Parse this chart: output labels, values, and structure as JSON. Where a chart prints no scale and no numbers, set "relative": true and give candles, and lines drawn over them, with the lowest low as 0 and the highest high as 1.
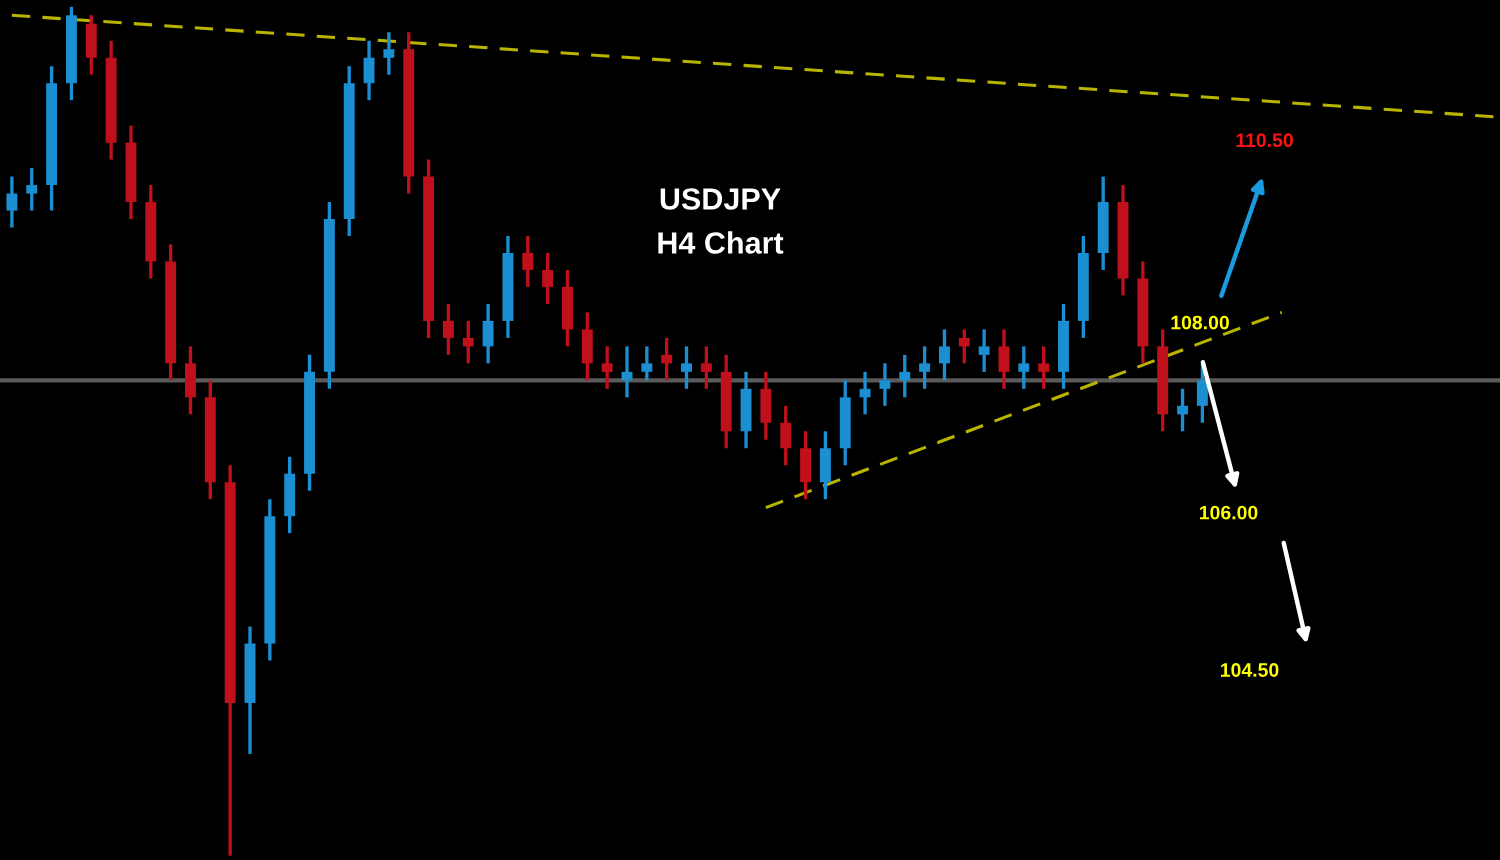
{
  "chart_data": {
    "type": "candlestick",
    "title": "USDJPY\nH4 Chart",
    "relative": true,
    "categories": [
      null,
      null,
      null,
      null,
      null,
      null,
      null,
      null,
      null,
      null,
      null,
      null,
      null,
      null,
      null,
      null,
      null,
      null,
      null,
      null,
      null,
      null,
      null,
      null,
      null,
      null,
      null,
      null,
      null,
      null,
      null,
      null,
      null,
      null,
      null,
      null,
      null,
      null,
      null,
      null,
      null,
      null,
      null,
      null,
      null,
      null,
      null,
      null,
      null,
      null,
      null,
      null,
      null,
      null,
      null,
      null,
      null,
      null,
      null,
      null,
      null,
      null,
      null,
      null,
      null,
      null,
      null,
      null,
      null,
      null,
      null,
      null,
      null,
      null,
      null,
      null
    ],
    "ohlc": [
      [
        0.76,
        0.8,
        0.74,
        0.78
      ],
      [
        0.78,
        0.81,
        0.76,
        0.79
      ],
      [
        0.79,
        0.93,
        0.76,
        0.91
      ],
      [
        0.91,
        1,
        0.89,
        0.99
      ],
      [
        0.98,
        0.99,
        0.92,
        0.94
      ],
      [
        0.94,
        0.96,
        0.82,
        0.84
      ],
      [
        0.84,
        0.86,
        0.75,
        0.77
      ],
      [
        0.77,
        0.79,
        0.68,
        0.7
      ],
      [
        0.7,
        0.72,
        0.56,
        0.58
      ],
      [
        0.58,
        0.6,
        0.52,
        0.54
      ],
      [
        0.54,
        0.56,
        0.42,
        0.44
      ],
      [
        0.44,
        0.46,
        0,
        0.18
      ],
      [
        0.18,
        0.27,
        0.12,
        0.25
      ],
      [
        0.25,
        0.42,
        0.23,
        0.4
      ],
      [
        0.4,
        0.47,
        0.38,
        0.45
      ],
      [
        0.45,
        0.59,
        0.43,
        0.57
      ],
      [
        0.57,
        0.77,
        0.55,
        0.75
      ],
      [
        0.75,
        0.93,
        0.73,
        0.91
      ],
      [
        0.91,
        0.96,
        0.89,
        0.94
      ],
      [
        0.94,
        0.97,
        0.92,
        0.95
      ],
      [
        0.95,
        0.97,
        0.78,
        0.8
      ],
      [
        0.8,
        0.82,
        0.61,
        0.63
      ],
      [
        0.63,
        0.65,
        0.59,
        0.61
      ],
      [
        0.61,
        0.63,
        0.58,
        0.6
      ],
      [
        0.6,
        0.65,
        0.58,
        0.63
      ],
      [
        0.63,
        0.73,
        0.61,
        0.71
      ],
      [
        0.71,
        0.73,
        0.67,
        0.69
      ],
      [
        0.69,
        0.71,
        0.65,
        0.67
      ],
      [
        0.67,
        0.69,
        0.6,
        0.62
      ],
      [
        0.62,
        0.64,
        0.56,
        0.58
      ],
      [
        0.58,
        0.6,
        0.55,
        0.57
      ],
      [
        0.56,
        0.6,
        0.54,
        0.57
      ],
      [
        0.57,
        0.6,
        0.56,
        0.58
      ],
      [
        0.59,
        0.61,
        0.56,
        0.58
      ],
      [
        0.57,
        0.6,
        0.55,
        0.58
      ],
      [
        0.58,
        0.6,
        0.55,
        0.57
      ],
      [
        0.57,
        0.59,
        0.48,
        0.5
      ],
      [
        0.5,
        0.57,
        0.48,
        0.55
      ],
      [
        0.55,
        0.57,
        0.49,
        0.51
      ],
      [
        0.51,
        0.53,
        0.46,
        0.48
      ],
      [
        0.48,
        0.5,
        0.42,
        0.44
      ],
      [
        0.44,
        0.5,
        0.42,
        0.48
      ],
      [
        0.48,
        0.56,
        0.46,
        0.54
      ],
      [
        0.54,
        0.57,
        0.52,
        0.55
      ],
      [
        0.55,
        0.58,
        0.53,
        0.56
      ],
      [
        0.56,
        0.59,
        0.54,
        0.57
      ],
      [
        0.57,
        0.6,
        0.55,
        0.58
      ],
      [
        0.58,
        0.62,
        0.56,
        0.6
      ],
      [
        0.61,
        0.62,
        0.58,
        0.6
      ],
      [
        0.59,
        0.62,
        0.57,
        0.6
      ],
      [
        0.6,
        0.62,
        0.55,
        0.57
      ],
      [
        0.57,
        0.6,
        0.55,
        0.58
      ],
      [
        0.58,
        0.6,
        0.55,
        0.57
      ],
      [
        0.57,
        0.65,
        0.55,
        0.63
      ],
      [
        0.63,
        0.73,
        0.61,
        0.71
      ],
      [
        0.71,
        0.8,
        0.69,
        0.77
      ],
      [
        0.77,
        0.79,
        0.66,
        0.68
      ],
      [
        0.68,
        0.7,
        0.58,
        0.6
      ],
      [
        0.6,
        0.62,
        0.5,
        0.52
      ],
      [
        0.52,
        0.55,
        0.5,
        0.53
      ],
      [
        0.53,
        0.58,
        0.51,
        0.56
      ],
      null,
      null,
      null,
      null,
      null,
      null,
      null,
      null,
      null,
      null,
      null,
      null,
      null,
      null,
      null
    ],
    "colors": [
      "#1b8fd2",
      "#1b8fd2",
      "#1b8fd2",
      "#1b8fd2",
      "#c0101c",
      "#c0101c",
      "#c0101c",
      "#c0101c",
      "#c0101c",
      "#c0101c",
      "#c0101c",
      "#c0101c",
      "#1b8fd2",
      "#1b8fd2",
      "#1b8fd2",
      "#1b8fd2",
      "#1b8fd2",
      "#1b8fd2",
      "#1b8fd2",
      "#1b8fd2",
      "#c0101c",
      "#c0101c",
      "#c0101c",
      "#c0101c",
      "#1b8fd2",
      "#1b8fd2",
      "#c0101c",
      "#c0101c",
      "#c0101c",
      "#c0101c",
      "#c0101c",
      "#1b8fd2",
      "#1b8fd2",
      "#c0101c",
      "#1b8fd2",
      "#c0101c",
      "#c0101c",
      "#1b8fd2",
      "#c0101c",
      "#c0101c",
      "#c0101c",
      "#1b8fd2",
      "#1b8fd2",
      "#1b8fd2",
      "#1b8fd2",
      "#1b8fd2",
      "#1b8fd2",
      "#1b8fd2",
      "#c0101c",
      "#1b8fd2",
      "#c0101c",
      "#1b8fd2",
      "#c0101c",
      "#1b8fd2",
      "#1b8fd2",
      "#1b8fd2",
      "#c0101c",
      "#c0101c",
      "#c0101c",
      "#1b8fd2",
      "#1b8fd2",
      null,
      null,
      null,
      null,
      null,
      null,
      null,
      null,
      null,
      null,
      null,
      null,
      null,
      null,
      null
    ],
    "series": [
      {
        "type": "line",
        "color": "#b8b400",
        "line_style": "dashed",
        "values": [
          0.99,
          null,
          null,
          null,
          null,
          null,
          null,
          null,
          null,
          null,
          null,
          null,
          null,
          null,
          null,
          null,
          null,
          null,
          null,
          null,
          null,
          null,
          null,
          null,
          null,
          null,
          null,
          null,
          null,
          null,
          null,
          null,
          null,
          null,
          null,
          null,
          null,
          null,
          null,
          null,
          null,
          null,
          null,
          null,
          null,
          null,
          null,
          null,
          null,
          null,
          null,
          null,
          null,
          null,
          null,
          null,
          null,
          null,
          null,
          null,
          null,
          null,
          null,
          null,
          null,
          null,
          null,
          null,
          null,
          null,
          null,
          null,
          null,
          null,
          null,
          0.87
        ]
      },
      {
        "type": "line",
        "color": "#b8b400",
        "line_style": "dashed",
        "values": [
          null,
          null,
          null,
          null,
          null,
          null,
          null,
          null,
          null,
          null,
          null,
          null,
          null,
          null,
          null,
          null,
          null,
          null,
          null,
          null,
          null,
          null,
          null,
          null,
          null,
          null,
          null,
          null,
          null,
          null,
          null,
          null,
          null,
          null,
          null,
          null,
          null,
          null,
          0.41,
          null,
          null,
          null,
          null,
          null,
          null,
          null,
          null,
          null,
          null,
          null,
          null,
          null,
          null,
          null,
          null,
          null,
          null,
          null,
          null,
          null,
          null,
          null,
          null,
          null,
          0.64,
          null,
          null,
          null,
          null,
          null,
          null,
          null,
          null,
          null,
          null,
          null
        ]
      }
    ],
    "ref_lines": [
      {
        "axis": "y",
        "value": 0.56,
        "color": "#5a5a5a"
      }
    ],
    "annotations": [
      "110.50",
      "108.00",
      "106.00",
      "104.50"
    ]
  }
}
